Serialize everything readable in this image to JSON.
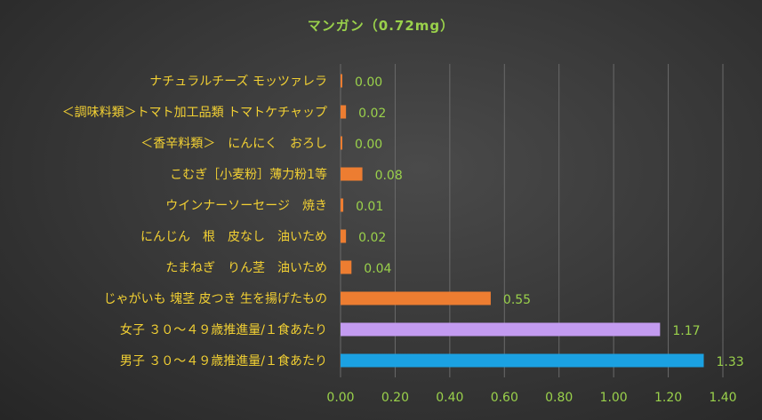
{
  "chart_data": {
    "type": "bar",
    "orientation": "horizontal",
    "title": "マンガン（0.72mg）",
    "categories": [
      "ナチュラルチーズ モッツァレラ",
      "＜調味料類＞トマト加工品類 トマトケチャップ",
      "＜香辛料類＞　にんにく　おろし",
      "こむぎ［小麦粉］薄力粉1等",
      "ウインナーソーセージ　焼き",
      "にんじん　根　皮なし　油いため",
      "たまねぎ　りん茎　油いため",
      "じゃがいも 塊茎 皮つき 生を揚げたもの",
      "女子 ３０～４９歳推進量/１食あたり",
      "男子 ３０～４９歳推進量/１食あたり"
    ],
    "values": [
      0.0,
      0.02,
      0.0,
      0.08,
      0.01,
      0.02,
      0.04,
      0.55,
      1.17,
      1.33
    ],
    "value_labels": [
      "0.00",
      "0.02",
      "0.00",
      "0.08",
      "0.01",
      "0.02",
      "0.04",
      "0.55",
      "1.17",
      "1.33"
    ],
    "bar_colors": [
      "#ed7d31",
      "#ed7d31",
      "#ed7d31",
      "#ed7d31",
      "#ed7d31",
      "#ed7d31",
      "#ed7d31",
      "#ed7d31",
      "#c39bf0",
      "#1ba1e2"
    ],
    "xticks": [
      "0.00",
      "0.20",
      "0.40",
      "0.60",
      "0.80",
      "1.00",
      "1.20",
      "1.40"
    ],
    "xlim": [
      0,
      1.4
    ],
    "grid": true,
    "legend": "none",
    "colors": {
      "title": "#9ad14b",
      "category_label": "#f2d033",
      "value_label": "#9ad14b",
      "tick_label": "#9ad14b",
      "grid": "#6a6a6a"
    }
  }
}
